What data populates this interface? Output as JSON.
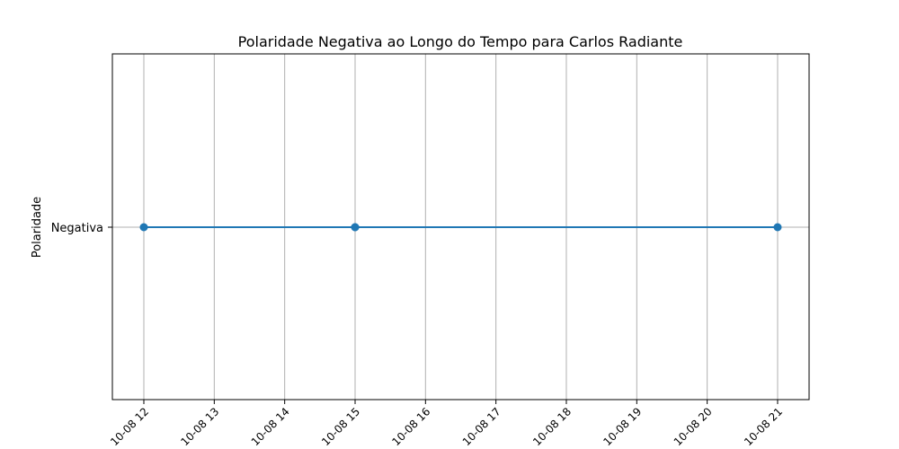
{
  "chart_data": {
    "type": "line",
    "title": "Polaridade Negativa ao Longo do Tempo para Carlos Radiante",
    "xlabel": "",
    "ylabel": "Polaridade",
    "x_tick_labels": [
      "10-08 12",
      "10-08 13",
      "10-08 14",
      "10-08 15",
      "10-08 16",
      "10-08 17",
      "10-08 18",
      "10-08 19",
      "10-08 20",
      "10-08 21"
    ],
    "y_categories": [
      "Negativa"
    ],
    "series": [
      {
        "color": "#1f77b4",
        "marker": "circle",
        "x": [
          "10-08 12",
          "10-08 15",
          "10-08 15",
          "10-08 21"
        ],
        "y": [
          "Negativa",
          "Negativa",
          "Negativa",
          "Negativa"
        ]
      }
    ],
    "grid": true,
    "legend": "none",
    "colors": {
      "series": "#1f77b4",
      "grid": "#b0b0b0",
      "axes": "#000000"
    }
  }
}
